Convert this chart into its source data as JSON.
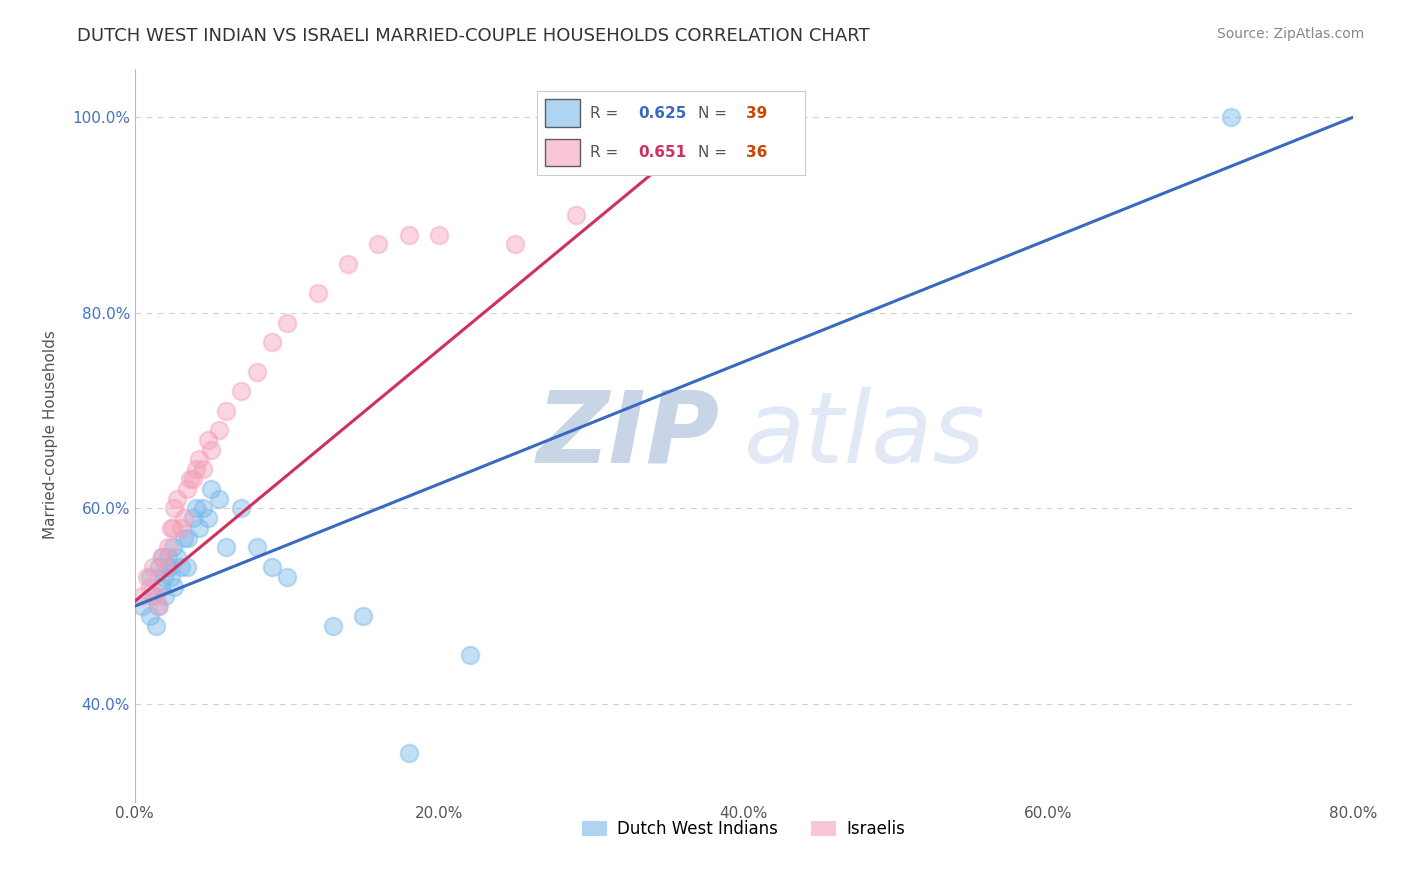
{
  "title": "DUTCH WEST INDIAN VS ISRAELI MARRIED-COUPLE HOUSEHOLDS CORRELATION CHART",
  "source": "Source: ZipAtlas.com",
  "ylabel": "Married-couple Households",
  "legend_blue_label": "Dutch West Indians",
  "legend_pink_label": "Israelis",
  "R_blue": 0.625,
  "N_blue": 39,
  "R_pink": 0.651,
  "N_pink": 36,
  "blue_color": "#7bb8e8",
  "pink_color": "#f4a0b8",
  "blue_line_color": "#3a6abf",
  "pink_line_color": "#d03060",
  "watermark_zip_color": "#b8c8e8",
  "watermark_atlas_color": "#c8d8f0",
  "background_color": "#ffffff",
  "xlim": [
    0.0,
    0.8
  ],
  "ylim": [
    0.3,
    1.05
  ],
  "xticks": [
    0.0,
    0.2,
    0.4,
    0.6,
    0.8
  ],
  "xtick_labels": [
    "0.0%",
    "20.0%",
    "40.0%",
    "60.0%",
    "80.0%"
  ],
  "yticks": [
    0.4,
    0.6,
    0.8,
    1.0
  ],
  "ytick_labels": [
    "40.0%",
    "60.0%",
    "80.0%",
    "100.0%"
  ],
  "blue_x": [
    0.005,
    0.01,
    0.01,
    0.012,
    0.014,
    0.015,
    0.016,
    0.017,
    0.018,
    0.019,
    0.02,
    0.021,
    0.022,
    0.023,
    0.024,
    0.025,
    0.026,
    0.028,
    0.03,
    0.032,
    0.034,
    0.035,
    0.038,
    0.04,
    0.042,
    0.045,
    0.048,
    0.05,
    0.055,
    0.06,
    0.07,
    0.08,
    0.09,
    0.1,
    0.13,
    0.15,
    0.18,
    0.22,
    0.72
  ],
  "blue_y": [
    0.5,
    0.49,
    0.53,
    0.51,
    0.48,
    0.5,
    0.54,
    0.52,
    0.55,
    0.53,
    0.51,
    0.54,
    0.55,
    0.54,
    0.53,
    0.56,
    0.52,
    0.55,
    0.54,
    0.57,
    0.54,
    0.57,
    0.59,
    0.6,
    0.58,
    0.6,
    0.59,
    0.62,
    0.61,
    0.56,
    0.6,
    0.56,
    0.54,
    0.53,
    0.48,
    0.49,
    0.35,
    0.45,
    1.0
  ],
  "pink_x": [
    0.005,
    0.008,
    0.01,
    0.012,
    0.014,
    0.016,
    0.018,
    0.02,
    0.022,
    0.024,
    0.025,
    0.026,
    0.028,
    0.03,
    0.032,
    0.034,
    0.036,
    0.038,
    0.04,
    0.042,
    0.045,
    0.048,
    0.05,
    0.055,
    0.06,
    0.07,
    0.08,
    0.09,
    0.1,
    0.12,
    0.14,
    0.16,
    0.18,
    0.2,
    0.25,
    0.29
  ],
  "pink_y": [
    0.51,
    0.53,
    0.52,
    0.54,
    0.51,
    0.5,
    0.55,
    0.54,
    0.56,
    0.58,
    0.58,
    0.6,
    0.61,
    0.58,
    0.59,
    0.62,
    0.63,
    0.63,
    0.64,
    0.65,
    0.64,
    0.67,
    0.66,
    0.68,
    0.7,
    0.72,
    0.74,
    0.77,
    0.79,
    0.82,
    0.85,
    0.87,
    0.88,
    0.88,
    0.87,
    0.9
  ],
  "blue_regline_x": [
    0.0,
    0.8
  ],
  "blue_regline_y": [
    0.5,
    1.0
  ],
  "pink_regline_x": [
    0.0,
    0.4
  ],
  "pink_regline_y": [
    0.505,
    1.02
  ]
}
